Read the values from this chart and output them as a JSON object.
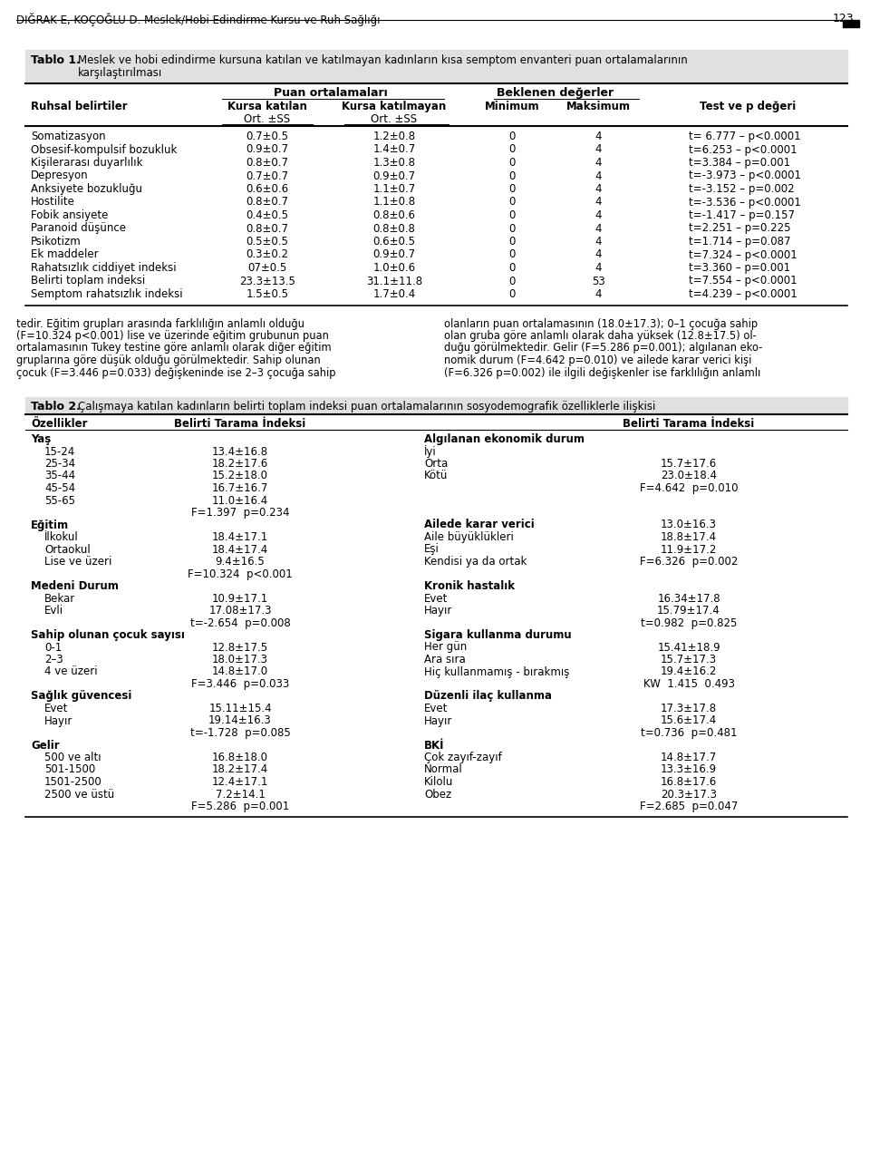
{
  "header_text": "DIĞRAK E, KOÇOĞLU D. Meslek/Hobi Edindirme Kursu ve Ruh Sağlığı",
  "page_num": "123",
  "table1_rows": [
    [
      "Somatizasyon",
      "0.7±0.5",
      "1.2±0.8",
      "0",
      "4",
      "t= 6.777 – p<0.0001"
    ],
    [
      "Obsesif-kompulsif bozukluk",
      "0.9±0.7",
      "1.4±0.7",
      "0",
      "4",
      "t=6.253 – p<0.0001"
    ],
    [
      "Kişilerarası duyarlılık",
      "0.8±0.7",
      "1.3±0.8",
      "0",
      "4",
      "t=3.384 – p=0.001"
    ],
    [
      "Depresyon",
      "0.7±0.7",
      "0.9±0.7",
      "0",
      "4",
      "t=-3.973 – p<0.0001"
    ],
    [
      "Anksiyete bozukluğu",
      "0.6±0.6",
      "1.1±0.7",
      "0",
      "4",
      "t=-3.152 – p=0.002"
    ],
    [
      "Hostilite",
      "0.8±0.7",
      "1.1±0.8",
      "0",
      "4",
      "t=-3.536 – p<0.0001"
    ],
    [
      "Fobik ansiyete",
      "0.4±0.5",
      "0.8±0.6",
      "0",
      "4",
      "t=-1.417 – p=0.157"
    ],
    [
      "Paranoid düşünce",
      "0.8±0.7",
      "0.8±0.8",
      "0",
      "4",
      "t=2.251 – p=0.225"
    ],
    [
      "Psikotizm",
      "0.5±0.5",
      "0.6±0.5",
      "0",
      "4",
      "t=1.714 – p=0.087"
    ],
    [
      "Ek maddeler",
      "0.3±0.2",
      "0.9±0.7",
      "0",
      "4",
      "t=7.324 – p<0.0001"
    ],
    [
      "Rahatsızlık ciddiyet indeksi",
      "07±0.5",
      "1.0±0.6",
      "0",
      "4",
      "t=3.360 – p=0.001"
    ],
    [
      "Belirti toplam indeksi",
      "23.3±13.5",
      "31.1±11.8",
      "0",
      "53",
      "t=7.554 – p<0.0001"
    ],
    [
      "Semptom rahatsızlık indeksi",
      "1.5±0.5",
      "1.7±0.4",
      "0",
      "4",
      "t=4.239 – p<0.0001"
    ]
  ],
  "paragraph_left": [
    "tedir. Eğitim grupları arasında farklılığın anlamlı olduğu",
    "(F=10.324 p<0.001) lise ve üzerinde eğitim grubunun puan",
    "ortalamasının Tukey testine göre anlamlı olarak diğer eğitim",
    "gruplarına göre düşük olduğu görülmektedir. Sahip olunan",
    "çocuk (F=3.446 p=0.033) değişkeninde ise 2–3 çocuğa sahip"
  ],
  "paragraph_right": [
    "olanların puan ortalamasının (18.0±17.3); 0–1 çocuğa sahip",
    "olan gruba göre anlamlı olarak daha yüksek (12.8±17.5) ol-",
    "duğu görülmektedir. Gelir (F=5.286 p=0.001); algılanan eko-",
    "nomik durum (F=4.642 p=0.010) ve ailede karar verici kişi",
    "(F=6.326 p=0.002) ile ilgili değişkenler ise farklılığın anlamlı"
  ],
  "table2_rows": [
    [
      "Yaş",
      "",
      "Algılanan ekonomik durum",
      ""
    ],
    [
      "15-24",
      "13.4±16.8",
      "İyi",
      ""
    ],
    [
      "25-34",
      "18.2±17.6",
      "Orta",
      "15.7±17.6"
    ],
    [
      "35-44",
      "15.2±18.0",
      "Kötü",
      "23.0±18.4"
    ],
    [
      "45-54",
      "16.7±16.7",
      "",
      "F=4.642  p=0.010"
    ],
    [
      "55-65",
      "11.0±16.4",
      "",
      ""
    ],
    [
      "",
      "F=1.397  p=0.234",
      "",
      ""
    ],
    [
      "Eğitim",
      "",
      "Ailede karar verici",
      "13.0±16.3"
    ],
    [
      "İlkokul",
      "18.4±17.1",
      "Aile büyüklükleri",
      "18.8±17.4"
    ],
    [
      "Ortaokul",
      "18.4±17.4",
      "Eşi",
      "11.9±17.2"
    ],
    [
      "Lise ve üzeri",
      "9.4±16.5",
      "Kendisi ya da ortak",
      "F=6.326  p=0.002"
    ],
    [
      "",
      "F=10.324  p<0.001",
      "",
      ""
    ],
    [
      "Medeni Durum",
      "",
      "Kronik hastalık",
      ""
    ],
    [
      "Bekar",
      "10.9±17.1",
      "Evet",
      "16.34±17.8"
    ],
    [
      "Evli",
      "17.08±17.3",
      "Hayır",
      "15.79±17.4"
    ],
    [
      "",
      "t=-2.654  p=0.008",
      "",
      "t=0.982  p=0.825"
    ],
    [
      "Sahip olunan çocuk sayısı",
      "",
      "Sigara kullanma durumu",
      ""
    ],
    [
      "0-1",
      "12.8±17.5",
      "Her gün",
      "15.41±18.9"
    ],
    [
      "2–3",
      "18.0±17.3",
      "Ara sıra",
      "15.7±17.3"
    ],
    [
      "4 ve üzeri",
      "14.8±17.0",
      "Hiç kullanmamış - bırakmış",
      "19.4±16.2"
    ],
    [
      "",
      "F=3.446  p=0.033",
      "",
      "KW  1.415  0.493"
    ],
    [
      "Sağlık güvencesi",
      "",
      "Düzenli ilaç kullanma",
      ""
    ],
    [
      "Evet",
      "15.11±15.4",
      "Evet",
      "17.3±17.8"
    ],
    [
      "Hayır",
      "19.14±16.3",
      "Hayır",
      "15.6±17.4"
    ],
    [
      "",
      "t=-1.728  p=0.085",
      "",
      "t=0.736  p=0.481"
    ],
    [
      "Gelir",
      "",
      "BKİ",
      ""
    ],
    [
      "500 ve altı",
      "16.8±18.0",
      "Çok zayıf-zayıf",
      "14.8±17.7"
    ],
    [
      "501-1500",
      "18.2±17.4",
      "Normal",
      "13.3±16.9"
    ],
    [
      "1501-2500",
      "12.4±17.1",
      "Kilolu",
      "16.8±17.6"
    ],
    [
      "2500 ve üstü",
      "7.2±14.1",
      "Obez",
      "20.3±17.3"
    ],
    [
      "",
      "F=5.286  p=0.001",
      "",
      "F=2.685  p=0.047"
    ]
  ],
  "table2_section_headers": [
    "Yaş",
    "Eğitim",
    "Medeni Durum",
    "Sahip olunan çocuk sayısı",
    "Sağlık güvencesi",
    "Gelir",
    "Algılanan ekonomik durum",
    "Ailede karar verici",
    "Kronik hastalık",
    "Sigara kullanma durumu",
    "Düzenli ilaç kullanma",
    "BKİ"
  ],
  "table2_stat_rows": [
    "F=1.397  p=0.234",
    "F=10.324  p<0.001",
    "t=-2.654  p=0.008",
    "F=3.446  p=0.033",
    "t=-1.728  p=0.085",
    "F=5.286  p=0.001",
    "F=4.642  p=0.010",
    "F=6.326  p=0.002",
    "t=0.982  p=0.825",
    "KW  1.415  0.493",
    "t=0.736  p=0.481",
    "F=2.685  p=0.047"
  ]
}
